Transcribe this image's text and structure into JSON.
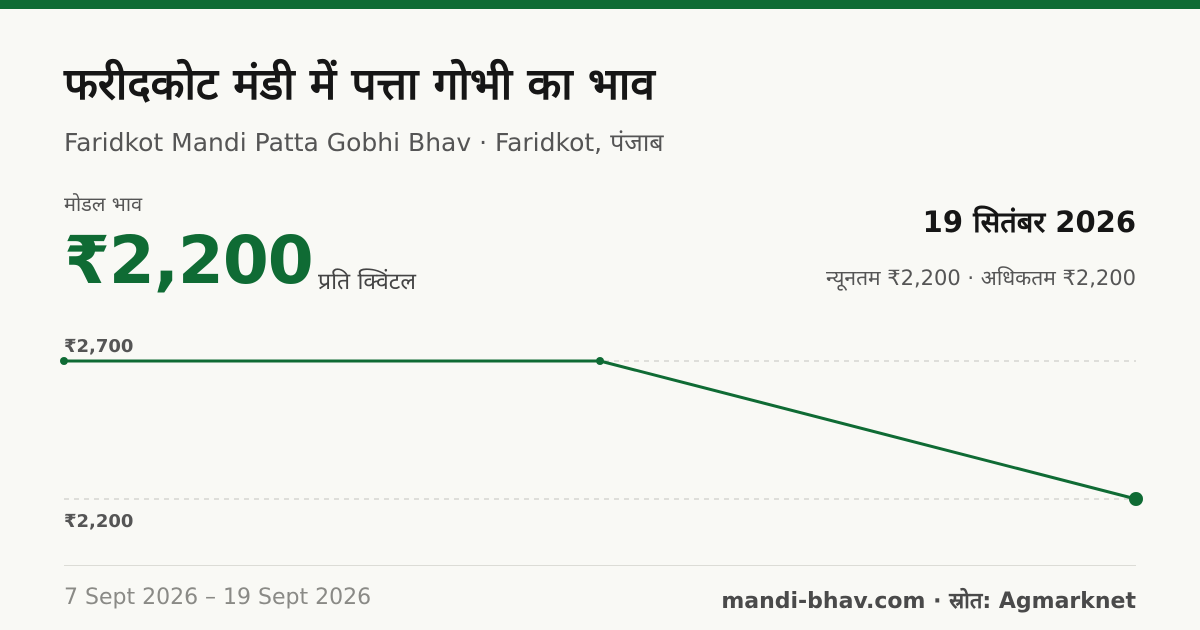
{
  "header": {
    "title": "फरीदकोट मंडी में पत्ता गोभी का भाव",
    "subtitle": "Faridkot Mandi Patta Gobhi Bhav · Faridkot, पंजाब"
  },
  "price": {
    "label": "मोडल भाव",
    "value": "₹2,200",
    "unit": "प्रति क्विंटल",
    "date": "19 सितंबर 2026",
    "minmax": "न्यूनतम ₹2,200 · अधिकतम ₹2,200"
  },
  "footer": {
    "range": "7 Sept 2026 – 19 Sept 2026",
    "source": "mandi-bhav.com · स्रोत: Agmarknet"
  },
  "colors": {
    "accent": "#0f6b34",
    "gridline": "#c4c4bf",
    "label": "#555555"
  },
  "chart_data": {
    "type": "line",
    "x": [
      "2026-09-07",
      "2026-09-13",
      "2026-09-19"
    ],
    "series": [
      {
        "values": [
          2700,
          2700,
          2200
        ]
      }
    ],
    "ylim": [
      2200,
      2700
    ],
    "y_tick_labels": [
      "₹2,700",
      "₹2,200"
    ],
    "grid": true
  }
}
